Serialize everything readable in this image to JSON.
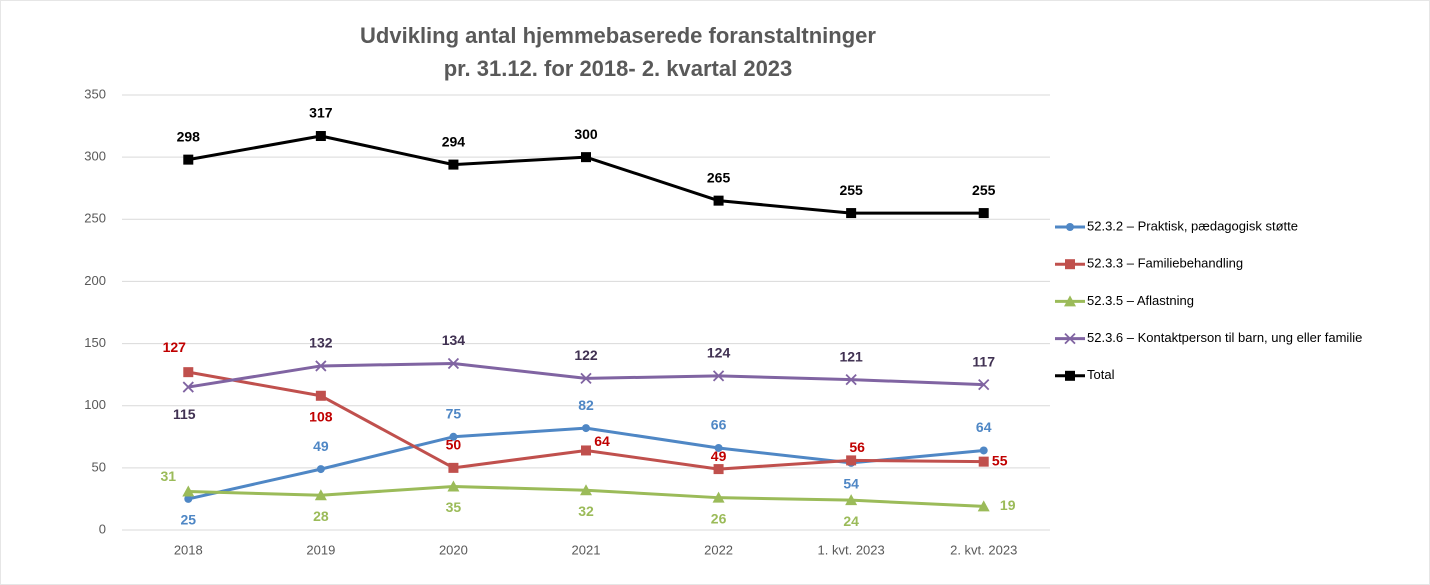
{
  "chart_data": {
    "type": "line",
    "title": [
      "Udvikling antal hjemmebaserede foranstaltninger",
      "pr. 31.12. for 2018- 2. kvartal 2023"
    ],
    "categories": [
      "2018",
      "2019",
      "2020",
      "2021",
      "2022",
      "1. kvt. 2023",
      "2. kvt. 2023"
    ],
    "series": [
      {
        "name": "52.3.2 – Praktisk, pædagogisk støtte",
        "color": "#4f87c5",
        "marker": "circle",
        "values": [
          25,
          49,
          75,
          82,
          66,
          54,
          64
        ]
      },
      {
        "name": "52.3.3 – Familiebehandling",
        "color": "#c0504d",
        "marker": "square",
        "values": [
          127,
          108,
          50,
          64,
          49,
          56,
          55
        ]
      },
      {
        "name": "52.3.5 – Aflastning",
        "color": "#9bbb59",
        "marker": "triangle",
        "values": [
          31,
          28,
          35,
          32,
          26,
          24,
          19
        ]
      },
      {
        "name": "52.3.6 – Kontaktperson til barn, ung eller familie",
        "color": "#8064a2",
        "marker": "x",
        "values": [
          115,
          132,
          134,
          122,
          124,
          121,
          117
        ]
      },
      {
        "name": "Total",
        "color": "#000000",
        "marker": "square",
        "values": [
          298,
          317,
          294,
          300,
          265,
          255,
          255
        ]
      }
    ],
    "ylim": [
      0,
      350
    ],
    "yticks": [
      0,
      50,
      100,
      150,
      200,
      250,
      300,
      350
    ],
    "grid": true,
    "legend": "right"
  }
}
